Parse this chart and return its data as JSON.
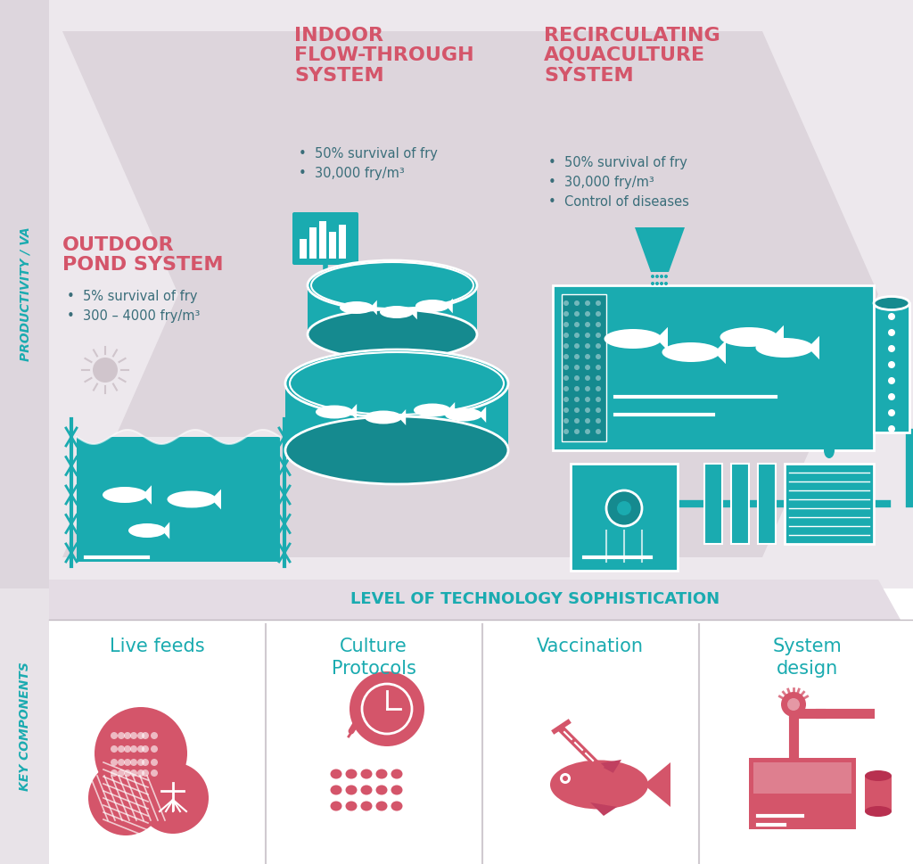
{
  "bg_color": "#ffffff",
  "lavender_bg": "#ede8ed",
  "white_bg": "#ffffff",
  "teal": "#1aabb0",
  "red": "#d4556a",
  "arrow_fill": "#ddd5dc",
  "tech_banner_fill": "#e4dce4",
  "productivity_label": "PRODUCTIVITY / VA",
  "tech_label": "LEVEL OF TECHNOLOGY SOPHISTICATION",
  "key_components_label": "KEY COMPONENTS",
  "system1_title": "OUTDOOR\nPOND SYSTEM",
  "system1_bullets": [
    "5% survival of fry",
    "300 – 4000 fry/m³"
  ],
  "system2_title": "INDOOR\nFLOW-THROUGH\nSYSTEM",
  "system2_bullets": [
    "50% survival of fry",
    "30,000 fry/m³"
  ],
  "system3_title": "RECIRCULATING\nAQUACULTURE\nSYSTEM",
  "system3_bullets": [
    "50% survival of fry",
    "30,000 fry/m³",
    "Control of diseases"
  ],
  "components": [
    "Live feeds",
    "Culture\nProtocols",
    "Vaccination",
    "System\ndesign"
  ],
  "comp_dividers": [
    298,
    541,
    784
  ]
}
